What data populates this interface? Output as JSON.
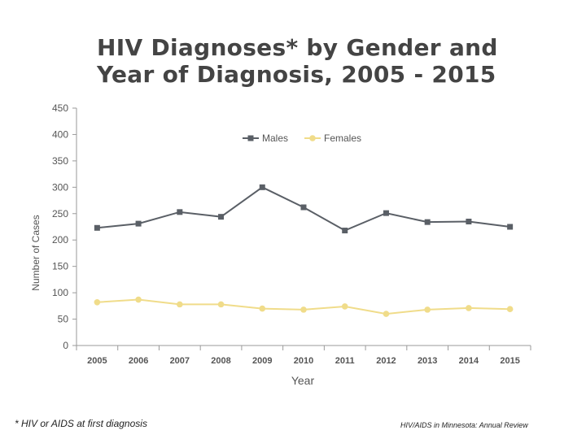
{
  "slide": {
    "title_line1": "HIV Diagnoses* by Gender and",
    "title_line2": "Year of Diagnosis, 2005 - 2015",
    "footnote": "* HIV or AIDS at first diagnosis",
    "source": "HIV/AIDS in Minnesota: Annual Review"
  },
  "chart_data": {
    "type": "line",
    "x": [
      2005,
      2006,
      2007,
      2008,
      2009,
      2010,
      2011,
      2012,
      2013,
      2014,
      2015
    ],
    "series": [
      {
        "name": "Males",
        "values": [
          223,
          231,
          253,
          244,
          300,
          262,
          218,
          251,
          234,
          235,
          225
        ],
        "color": "#5a5f66",
        "marker": "square"
      },
      {
        "name": "Females",
        "values": [
          82,
          87,
          78,
          78,
          70,
          68,
          74,
          60,
          68,
          71,
          69
        ],
        "color": "#f0dc8a",
        "marker": "circle"
      }
    ],
    "xlabel": "Year",
    "ylabel": "Number of Cases",
    "ylim": [
      0,
      450
    ],
    "yticks": [
      0,
      50,
      100,
      150,
      200,
      250,
      300,
      350,
      400,
      450
    ],
    "grid": false,
    "legend_position": "top-center"
  }
}
